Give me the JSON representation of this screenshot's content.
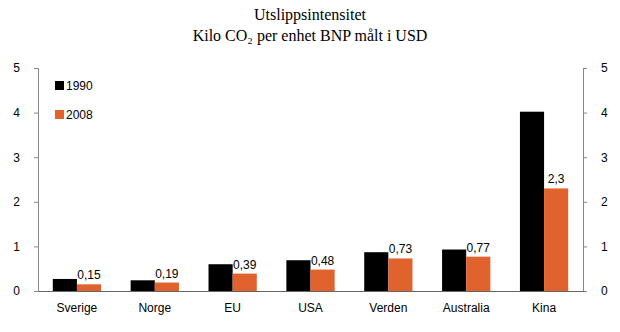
{
  "chart_data": {
    "type": "bar",
    "title": "Utslippsintensitet",
    "subtitle": "Kilo CO₂ per enhet BNP målt i USD",
    "categories": [
      "Sverige",
      "Norge",
      "EU",
      "USA",
      "Verden",
      "Australia",
      "Kina"
    ],
    "series": [
      {
        "name": "1990",
        "color": "#000000",
        "values": [
          0.27,
          0.24,
          0.6,
          0.69,
          0.87,
          0.93,
          4.02
        ]
      },
      {
        "name": "2008",
        "color": "#e0622c",
        "values": [
          0.15,
          0.19,
          0.39,
          0.48,
          0.73,
          0.77,
          2.3
        ],
        "data_labels": true,
        "value_labels": [
          "0,15",
          "0,19",
          "0,39",
          "0,48",
          "0,73",
          "0,77",
          "2,3"
        ]
      }
    ],
    "ylim": [
      0,
      5
    ],
    "yticks": [
      0,
      1,
      2,
      3,
      4,
      5
    ],
    "grid": false,
    "legend": "upper left"
  }
}
